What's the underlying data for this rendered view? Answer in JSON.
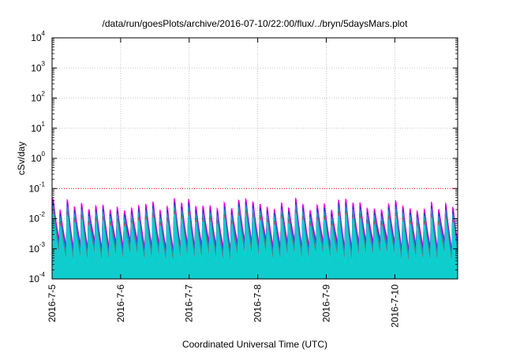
{
  "chart_data": {
    "type": "area",
    "title": "/data/run/goesPlots/archive/2016-07-10/22:00/flux/../bryn/5daysMars.plot",
    "xlabel": "Coordinated Universal Time (UTC)",
    "ylabel": "cSv/day",
    "yscale": "log",
    "ylim": [
      0.0001,
      10000
    ],
    "xlim": [
      "2016-07-05 00:00",
      "2016-07-10 22:00"
    ],
    "grid": true,
    "reference_line": {
      "y": 0.1,
      "color": "#ff0000",
      "style": "dotted"
    },
    "y_ticks": [
      {
        "base": "10",
        "exp": "-4",
        "value": 0.0001
      },
      {
        "base": "10",
        "exp": "-3",
        "value": 0.001
      },
      {
        "base": "10",
        "exp": "-2",
        "value": 0.01
      },
      {
        "base": "10",
        "exp": "-1",
        "value": 0.1
      },
      {
        "base": "10",
        "exp": "0",
        "value": 1
      },
      {
        "base": "10",
        "exp": "1",
        "value": 10
      },
      {
        "base": "10",
        "exp": "2",
        "value": 100
      },
      {
        "base": "10",
        "exp": "3",
        "value": 1000
      },
      {
        "base": "10",
        "exp": "4",
        "value": 10000
      }
    ],
    "x_ticks": [
      {
        "label": "2016-7-5",
        "value": "2016-07-05"
      },
      {
        "label": "2016-7-6",
        "value": "2016-07-06"
      },
      {
        "label": "2016-7-7",
        "value": "2016-07-07"
      },
      {
        "label": "2016-7-8",
        "value": "2016-07-08"
      },
      {
        "label": "2016-7-9",
        "value": "2016-07-09"
      },
      {
        "label": "2016-7-10",
        "value": "2016-07-10"
      }
    ],
    "series_colors": [
      "#ff00ff",
      "#cc00cc",
      "#3333cc",
      "#4a68f0",
      "#00b4b4",
      "#2a8a8a",
      "#b06060",
      "#00d8d8"
    ],
    "envelope": {
      "period_hours": 2.5,
      "peak_max": 0.1,
      "peak_min": 0.03,
      "trough_max": 0.002,
      "trough_min": 0.0009
    }
  }
}
